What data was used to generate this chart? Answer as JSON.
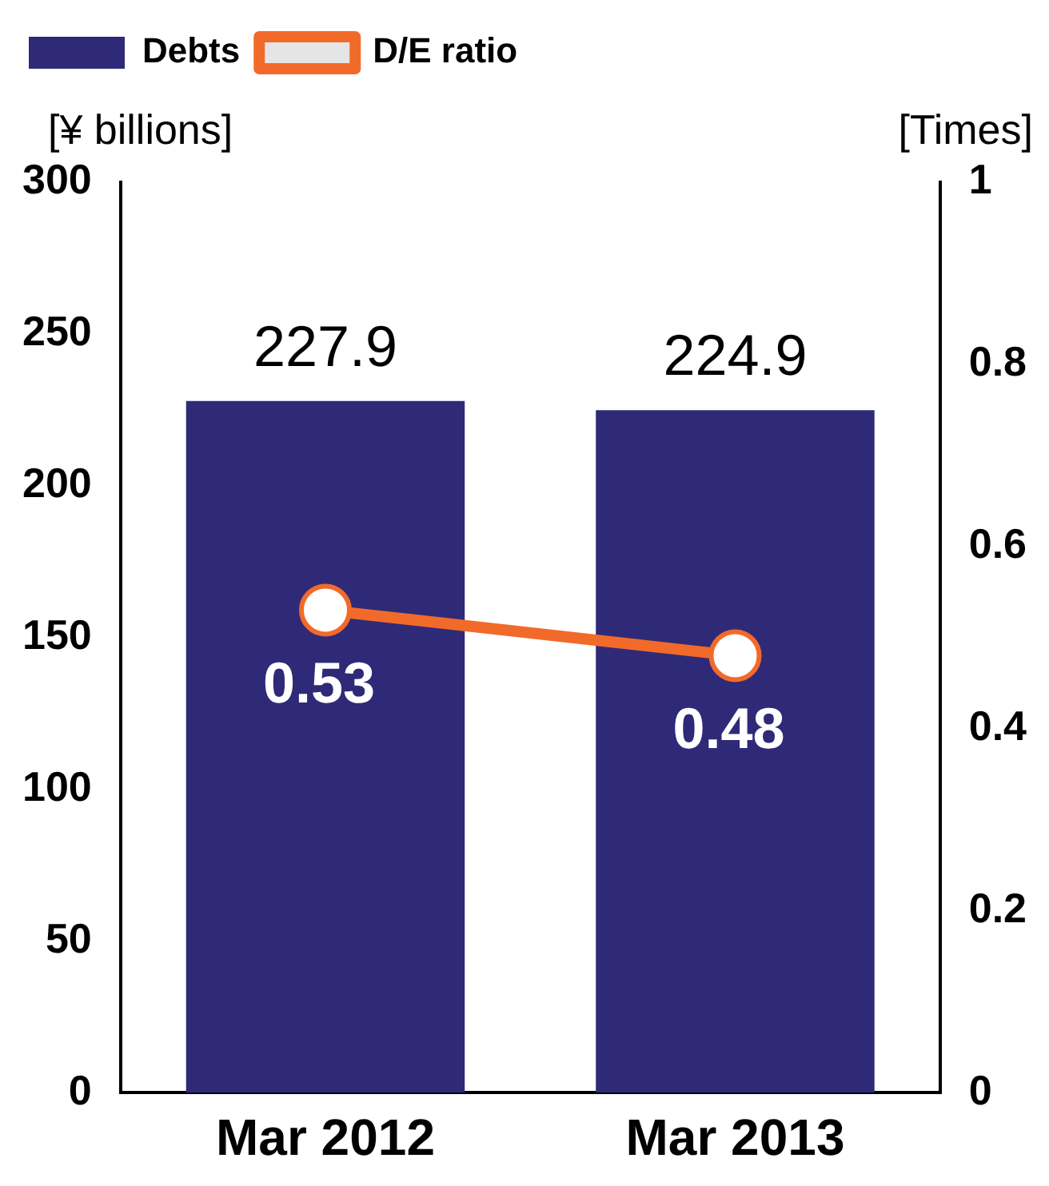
{
  "chart_data": {
    "type": "bar",
    "categories": [
      "Mar 2012",
      "Mar 2013"
    ],
    "series": [
      {
        "name": "Debts",
        "color": "#2e2a78",
        "values": [
          227.9,
          224.9
        ]
      },
      {
        "name": "D/E ratio",
        "type": "line",
        "axis": "y2",
        "color": "#f26a2a",
        "values": [
          0.53,
          0.48
        ]
      }
    ],
    "ylabel": "[¥ billions]",
    "y2label": "[Times]",
    "ylim": [
      0,
      300
    ],
    "yticks": [
      0,
      50,
      100,
      150,
      200,
      250,
      300
    ],
    "y2lim": [
      0,
      1
    ],
    "y2ticks": [
      0,
      0.2,
      0.4,
      0.6,
      0.8,
      1
    ],
    "data_labels": true,
    "legend": "top left",
    "grid": false,
    "marker": "circle"
  }
}
